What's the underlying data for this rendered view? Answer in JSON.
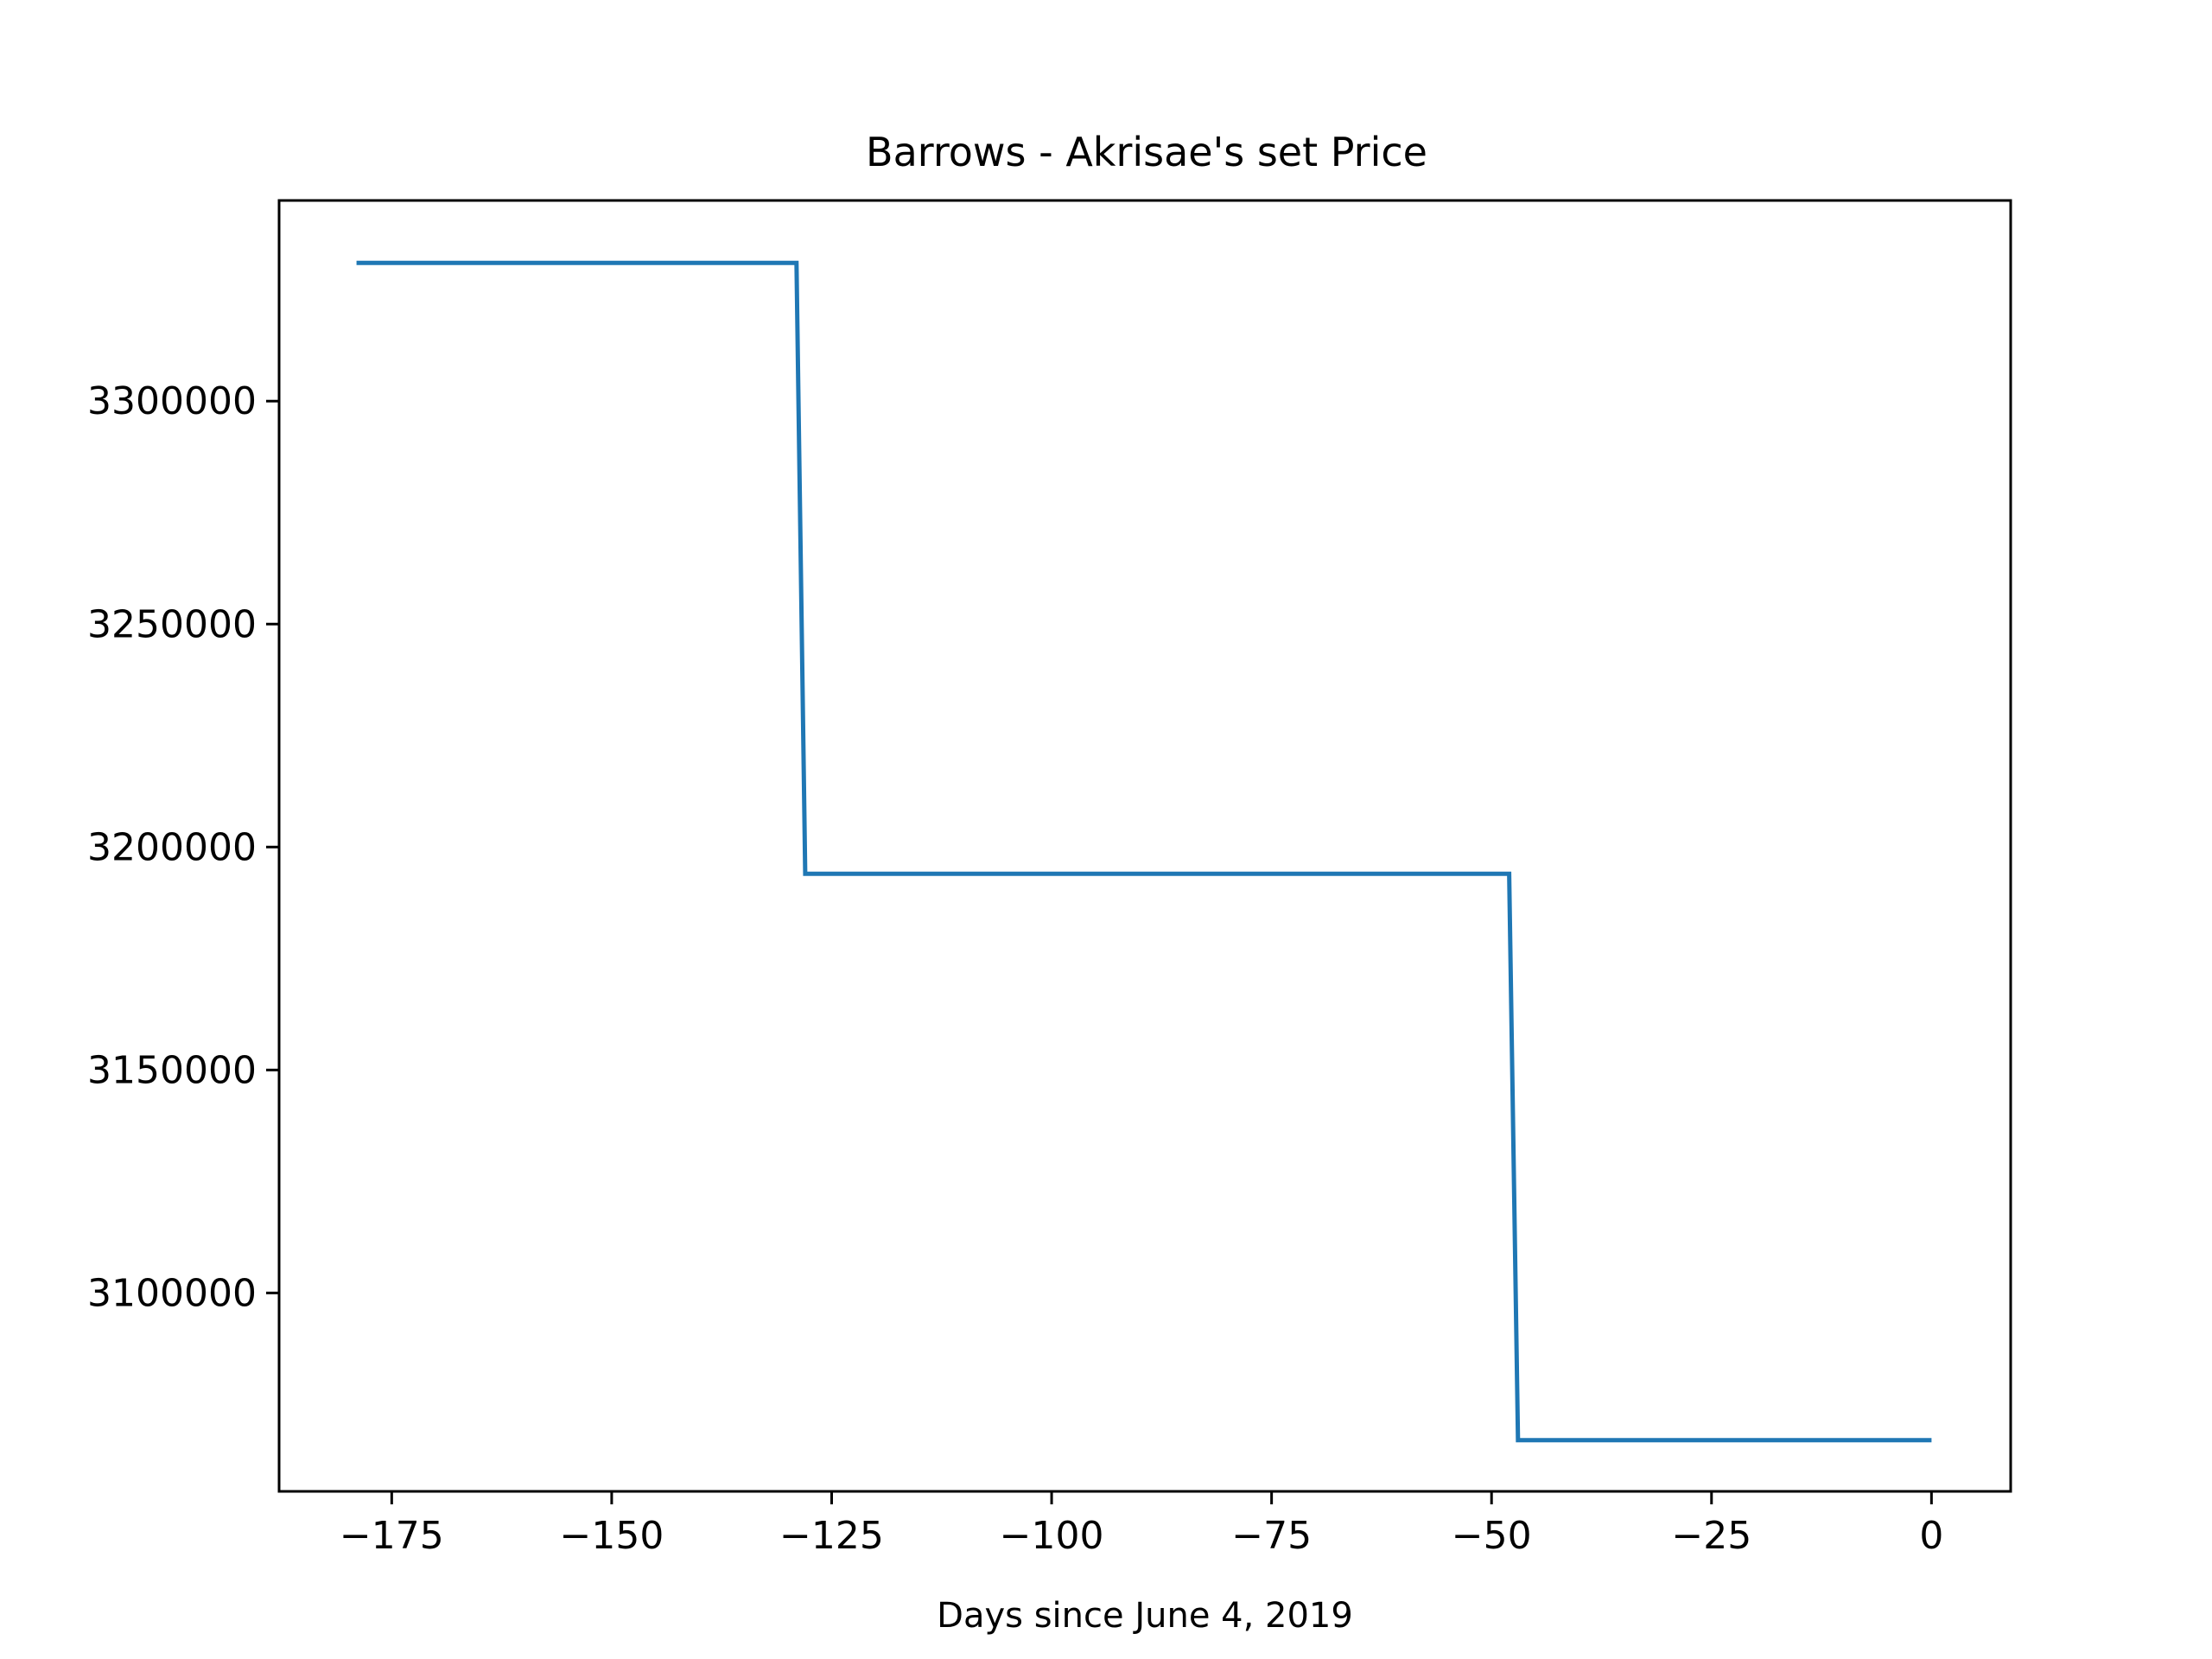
{
  "chart_data": {
    "type": "line",
    "title": "Barrows - Akrisae's set Price",
    "xlabel": "Days since June 4, 2019",
    "ylabel": "",
    "xlim": [
      -187.8,
      9.0
    ],
    "ylim": [
      3055500,
      3345000
    ],
    "xticks": [
      -175,
      -150,
      -125,
      -100,
      -75,
      -50,
      -25,
      0
    ],
    "xtick_labels": [
      "−175",
      "−150",
      "−125",
      "−100",
      "−75",
      "−50",
      "−25",
      "0"
    ],
    "yticks": [
      3100000,
      3150000,
      3200000,
      3250000,
      3300000
    ],
    "ytick_labels": [
      "3100000",
      "3150000",
      "3200000",
      "3250000",
      "3300000"
    ],
    "grid": false,
    "line_color": "#1f77b4",
    "series": [
      {
        "x": [
          -179,
          -129,
          -128,
          -48,
          -47,
          0
        ],
        "y": [
          3331000,
          3331000,
          3194000,
          3194000,
          3067000,
          3067000
        ]
      }
    ]
  }
}
